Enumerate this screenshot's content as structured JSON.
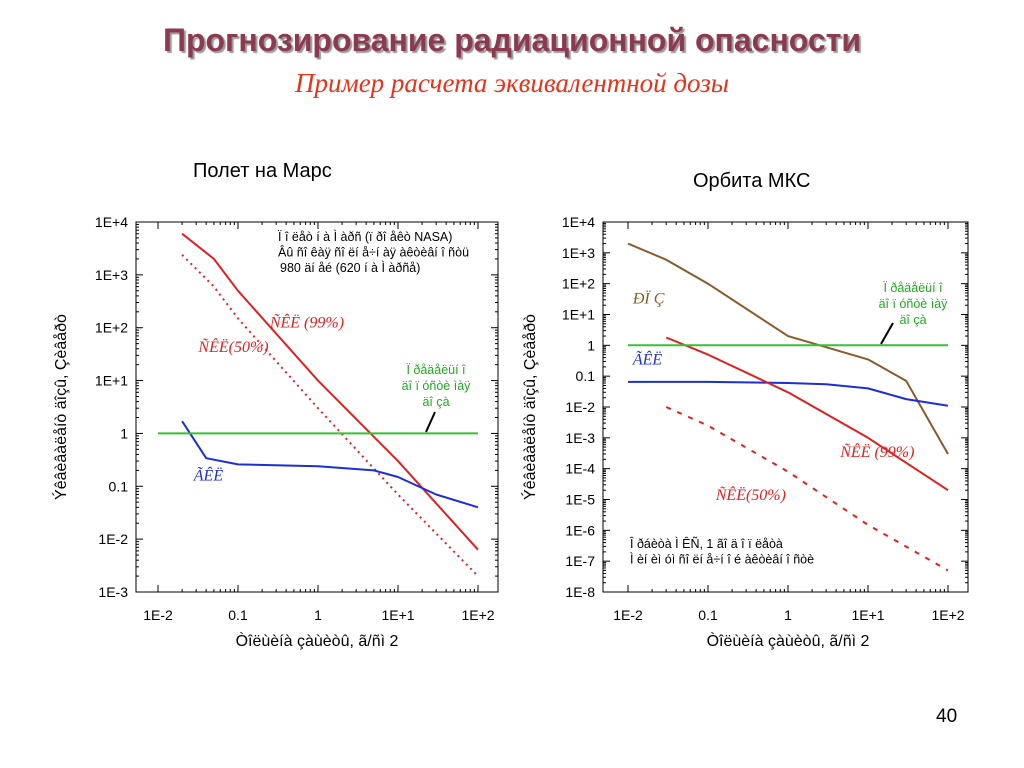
{
  "slide": {
    "title": "Прогнозирование радиационной опасности",
    "subtitle": "Пример расчета эквивалентной дозы",
    "page_number": "40"
  },
  "chart_data": [
    {
      "type": "line",
      "title": "Полет на Марс",
      "xlabel": "Òîëùèíà çàùèòû, ã/ñì 2",
      "ylabel": "Ýêâèâàëåíò äîçû, Çèâåðò",
      "xscale": "log",
      "yscale": "log",
      "xlim": [
        0.01,
        100
      ],
      "ylim": [
        0.001,
        10000
      ],
      "xticks": [
        "1E-2",
        "0.1",
        "1",
        "1E+1",
        "1E+2"
      ],
      "yticks": [
        "1E-3",
        "1E-2",
        "0.1",
        "1",
        "1E+1",
        "1E+2",
        "1E+3",
        "1E+4"
      ],
      "grid": false,
      "annotation": [
        "Ï î ëåò í à Ì  àðñ (ï ðî åêò NASA)",
        "Âû ñî êàÿ ñî ëí å÷í àÿ àêòèâí î ñòü",
        "980 äí åé (620 í à Ì  àðñå)"
      ],
      "threshold_label": [
        "Ï ðåäåëüí î",
        "äî ï óñòè ìàÿ",
        "äî çà"
      ],
      "series": [
        {
          "name": "ÑÊË (99%)",
          "color": "#e02020",
          "dash": "solid",
          "label_at": [
            0.25,
            102
          ],
          "x": [
            0.02,
            0.05,
            0.1,
            1,
            10,
            100
          ],
          "y": [
            6000,
            2000,
            500,
            10,
            0.3,
            0.0063
          ]
        },
        {
          "name": "ÑÊË(50%)",
          "color": "#e02020",
          "dash": "dotted",
          "label_at": [
            0.032,
            35
          ],
          "x": [
            0.02,
            0.05,
            0.1,
            1,
            10,
            100
          ],
          "y": [
            2400,
            600,
            150,
            3,
            0.07,
            0.002
          ]
        },
        {
          "name": "ÃÊË",
          "color": "#1c2fd4",
          "dash": "solid",
          "label_at": [
            0.028,
            0.13
          ],
          "x": [
            0.02,
            0.04,
            0.1,
            1,
            5,
            10,
            30,
            100
          ],
          "y": [
            1.7,
            0.34,
            0.26,
            0.24,
            0.2,
            0.15,
            0.07,
            0.04
          ]
        },
        {
          "name": "",
          "color": "#33c233",
          "dash": "solid",
          "label_at": null,
          "x": [
            0.01,
            100
          ],
          "y": [
            1,
            1
          ]
        }
      ]
    },
    {
      "type": "line",
      "title": "Орбита МКС",
      "xlabel": "Òîëùèíà çàùèòû, ã/ñì 2",
      "ylabel": "Ýêâèâàëåíò äîçû, Çèâåðò",
      "xscale": "log",
      "yscale": "log",
      "xlim": [
        0.01,
        100
      ],
      "ylim": [
        1e-08,
        10000
      ],
      "xticks": [
        "1E-2",
        "0.1",
        "1",
        "1E+1",
        "1E+2"
      ],
      "yticks": [
        "1E-8",
        "1E-7",
        "1E-6",
        "1E-5",
        "1E-4",
        "1E-3",
        "1E-2",
        "0.1",
        "1",
        "1E+1",
        "1E+2",
        "1E+3",
        "1E+4"
      ],
      "grid": false,
      "annotation": [
        "Î ðáèòà Ì ÊÑ, 1 ãî ä î ï ëåòà",
        "Ì èí èì óì  ñî ëí å÷í î é àêòèâí î ñòè"
      ],
      "threshold_label": [
        "Ï ðåäåëüí î",
        "äî ï óñòè ìàÿ",
        "äî çà"
      ],
      "series": [
        {
          "name": "ÐÏ Ç",
          "color": "#8b5a2b",
          "dash": "solid",
          "label_at": [
            0.0115,
            23
          ],
          "x": [
            0.01,
            0.03,
            0.1,
            1,
            10,
            30,
            100
          ],
          "y": [
            2000,
            600,
            100,
            2,
            0.35,
            0.07,
            0.0003
          ]
        },
        {
          "name": "ÃÊË",
          "color": "#1c2fd4",
          "dash": "solid",
          "label_at": [
            0.0115,
            0.24
          ],
          "x": [
            0.01,
            0.1,
            1,
            3,
            10,
            30,
            100
          ],
          "y": [
            0.065,
            0.065,
            0.06,
            0.055,
            0.04,
            0.018,
            0.011
          ]
        },
        {
          "name": "ÑÊË (99%)",
          "color": "#e02020",
          "dash": "solid",
          "label_at": [
            4.5,
            0.00024
          ],
          "x": [
            0.03,
            0.1,
            1,
            10,
            100
          ],
          "y": [
            1.8,
            0.5,
            0.03,
            0.001,
            2e-05
          ]
        },
        {
          "name": "ÑÊË(50%)",
          "color": "#e02020",
          "dash": "dashed",
          "label_at": [
            0.125,
            9.5e-06
          ],
          "x": [
            0.03,
            0.1,
            1,
            10,
            100
          ],
          "y": [
            0.01,
            0.0025,
            8e-05,
            1.5e-06,
            5e-08
          ]
        },
        {
          "name": "",
          "color": "#33c233",
          "dash": "solid",
          "label_at": null,
          "x": [
            0.01,
            100
          ],
          "y": [
            1,
            1
          ]
        }
      ]
    }
  ]
}
